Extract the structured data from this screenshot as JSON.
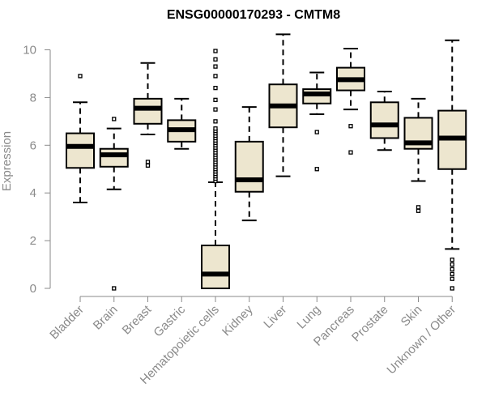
{
  "chart_data": {
    "type": "boxplot",
    "title": "ENSG00000170293 - CMTM8",
    "xlabel": "",
    "ylabel": "Expression",
    "ylim": [
      0,
      10.7
    ],
    "yticks": [
      0,
      2,
      4,
      6,
      8,
      10
    ],
    "grid": false,
    "legend": "none",
    "colors": {
      "box_fill": "#ede6cf",
      "box_stroke": "#000000",
      "axis": "#8a8a8a",
      "text": "#8a8a8a",
      "title": "#000000"
    },
    "categories": [
      "Bladder",
      "Brain",
      "Breast",
      "Gastric",
      "Hematopoietic cells",
      "Kidney",
      "Liver",
      "Lung",
      "Pancreas",
      "Prostate",
      "Skin",
      "Unknown / Other"
    ],
    "boxes": [
      {
        "category": "Bladder",
        "whisker_low": 3.6,
        "q1": 5.05,
        "median": 5.95,
        "q3": 6.5,
        "whisker_high": 7.8,
        "outliers": [
          8.9
        ]
      },
      {
        "category": "Brain",
        "whisker_low": 4.15,
        "q1": 5.1,
        "median": 5.6,
        "q3": 5.85,
        "whisker_high": 6.7,
        "outliers": [
          7.1,
          0.0
        ]
      },
      {
        "category": "Breast",
        "whisker_low": 6.45,
        "q1": 6.9,
        "median": 7.55,
        "q3": 7.95,
        "whisker_high": 9.45,
        "outliers": [
          5.3,
          5.15
        ]
      },
      {
        "category": "Gastric",
        "whisker_low": 5.85,
        "q1": 6.15,
        "median": 6.65,
        "q3": 7.05,
        "whisker_high": 7.95,
        "outliers": []
      },
      {
        "category": "Hematopoietic cells",
        "whisker_low": 0.0,
        "q1": 0.0,
        "median": 0.6,
        "q3": 1.8,
        "whisker_high": 4.45,
        "outliers": [
          4.5,
          4.6,
          4.7,
          4.8,
          4.9,
          5.0,
          5.1,
          5.2,
          5.3,
          5.4,
          5.5,
          5.6,
          5.7,
          5.8,
          5.9,
          6.0,
          6.1,
          6.2,
          6.3,
          6.4,
          6.5,
          6.6,
          6.7,
          7.0,
          7.5,
          7.9,
          8.4,
          8.9,
          9.3,
          9.6,
          9.95
        ]
      },
      {
        "category": "Kidney",
        "whisker_low": 2.85,
        "q1": 4.05,
        "median": 4.55,
        "q3": 6.15,
        "whisker_high": 7.6,
        "outliers": []
      },
      {
        "category": "Liver",
        "whisker_low": 4.7,
        "q1": 6.75,
        "median": 7.65,
        "q3": 8.55,
        "whisker_high": 10.65,
        "outliers": []
      },
      {
        "category": "Lung",
        "whisker_low": 7.3,
        "q1": 7.75,
        "median": 8.15,
        "q3": 8.35,
        "whisker_high": 9.05,
        "outliers": [
          6.55,
          5.0
        ]
      },
      {
        "category": "Pancreas",
        "whisker_low": 7.5,
        "q1": 8.3,
        "median": 8.75,
        "q3": 9.25,
        "whisker_high": 10.05,
        "outliers": [
          6.8,
          5.7
        ]
      },
      {
        "category": "Prostate",
        "whisker_low": 5.8,
        "q1": 6.3,
        "median": 6.85,
        "q3": 7.8,
        "whisker_high": 8.25,
        "outliers": []
      },
      {
        "category": "Skin",
        "whisker_low": 4.5,
        "q1": 5.85,
        "median": 6.1,
        "q3": 7.15,
        "whisker_high": 7.95,
        "outliers": [
          3.4,
          3.25
        ]
      },
      {
        "category": "Unknown / Other",
        "whisker_low": 1.65,
        "q1": 5.0,
        "median": 6.3,
        "q3": 7.45,
        "whisker_high": 10.4,
        "outliers": [
          1.2,
          1.0,
          0.8,
          0.6,
          0.4,
          0.0
        ]
      }
    ]
  }
}
